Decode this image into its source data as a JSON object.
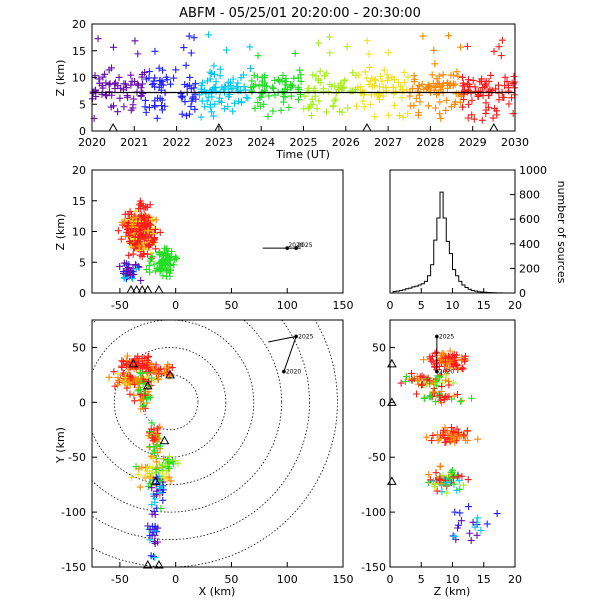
{
  "title": "ABFM - 05/25/01 20:20:00 - 20:30:00",
  "colors": {
    "purple": "#6a0dad",
    "blue": "#2020ff",
    "cyan": "#00c8f0",
    "green": "#22dd22",
    "lime": "#aaee22",
    "yellow": "#f0e020",
    "orange": "#ff8800",
    "red": "#ff1a1a",
    "black": "#000000"
  },
  "chart_data": [
    {
      "id": "time_height",
      "type": "scatter",
      "xlabel": "Time (UT)",
      "ylabel": "Z (km)",
      "x_tick_labels": [
        "2020",
        "2021",
        "2022",
        "2023",
        "2024",
        "2025",
        "2026",
        "2027",
        "2028",
        "2029",
        "2030"
      ],
      "xlim": [
        "20:20:00",
        "20:30:00"
      ],
      "ylim": [
        0,
        20
      ],
      "y_ticks": [
        0,
        5,
        10,
        15,
        20
      ],
      "reference_line_z": 7.2,
      "station_triangles_time": [
        "20:20:30",
        "20:23:00",
        "20:26:30",
        "20:29:30"
      ],
      "color_by": "time"
    },
    {
      "id": "x_height",
      "type": "scatter",
      "xlabel": "",
      "ylabel": "Z (km)",
      "xlim": [
        -75,
        150
      ],
      "ylim": [
        0,
        20
      ],
      "x_ticks": [
        -50,
        0,
        50,
        100,
        150
      ],
      "y_ticks": [
        0,
        5,
        10,
        15,
        20
      ],
      "station_triangles_x": [
        -40,
        -35,
        -30,
        -25,
        -15
      ],
      "scale_bar_labels": [
        "2020",
        "2025"
      ]
    },
    {
      "id": "height_histogram",
      "type": "line",
      "xlabel": "",
      "ylabel": "number of sources",
      "xlim": [
        0,
        20
      ],
      "ylim": [
        0,
        1000
      ],
      "x_ticks": [
        0,
        5,
        10,
        15,
        20
      ],
      "y_ticks": [
        0,
        200,
        400,
        600,
        800,
        1000
      ],
      "x": [
        0,
        0.5,
        1,
        1.5,
        2,
        2.5,
        3,
        3.5,
        4,
        4.5,
        5,
        5.5,
        6,
        6.5,
        7,
        7.5,
        8,
        8.5,
        9,
        9.5,
        10,
        10.5,
        11,
        11.5,
        12,
        12.5,
        13,
        13.5,
        14,
        14.5,
        15,
        15.5,
        16,
        16.5,
        17,
        17.5,
        18,
        18.5,
        19,
        19.5,
        20
      ],
      "values": [
        0,
        12,
        15,
        20,
        25,
        35,
        40,
        50,
        55,
        65,
        75,
        95,
        140,
        230,
        430,
        610,
        820,
        610,
        420,
        320,
        190,
        140,
        95,
        65,
        45,
        30,
        20,
        15,
        10,
        8,
        6,
        4,
        3,
        2,
        1,
        1,
        0,
        0,
        0,
        0,
        0
      ]
    },
    {
      "id": "plan_view",
      "type": "scatter",
      "xlabel": "X (km)",
      "ylabel": "Y (km)",
      "xlim": [
        -75,
        150
      ],
      "ylim": [
        -150,
        75
      ],
      "x_ticks": [
        -50,
        0,
        50,
        100,
        150
      ],
      "y_ticks": [
        -150,
        -100,
        -50,
        0,
        50
      ],
      "range_rings_km": [
        25,
        50,
        75,
        100,
        125,
        150
      ],
      "range_ring_center": [
        -5,
        0
      ],
      "station_triangles": [
        [
          -38,
          35
        ],
        [
          -25,
          15
        ],
        [
          -5,
          25
        ],
        [
          -10,
          -35
        ],
        [
          -18,
          -72
        ],
        [
          -25,
          -160
        ],
        [
          -15,
          -160
        ]
      ],
      "arrow_labels": [
        "2025",
        "2020"
      ],
      "arrow_points": [
        [
          108,
          60
        ],
        [
          97,
          28
        ]
      ]
    },
    {
      "id": "z_y",
      "type": "scatter",
      "xlabel": "Z (km)",
      "ylabel": "",
      "xlim": [
        0,
        20
      ],
      "ylim": [
        -150,
        75
      ],
      "x_ticks": [
        0,
        5,
        10,
        15,
        20
      ],
      "y_ticks": [
        -150,
        -100,
        -50,
        0,
        50
      ],
      "station_triangles_y": [
        35,
        0,
        -72
      ],
      "arrow_labels": [
        "2025",
        "2020"
      ],
      "arrow_points": [
        [
          7.5,
          60
        ],
        [
          7.5,
          28
        ]
      ]
    }
  ]
}
